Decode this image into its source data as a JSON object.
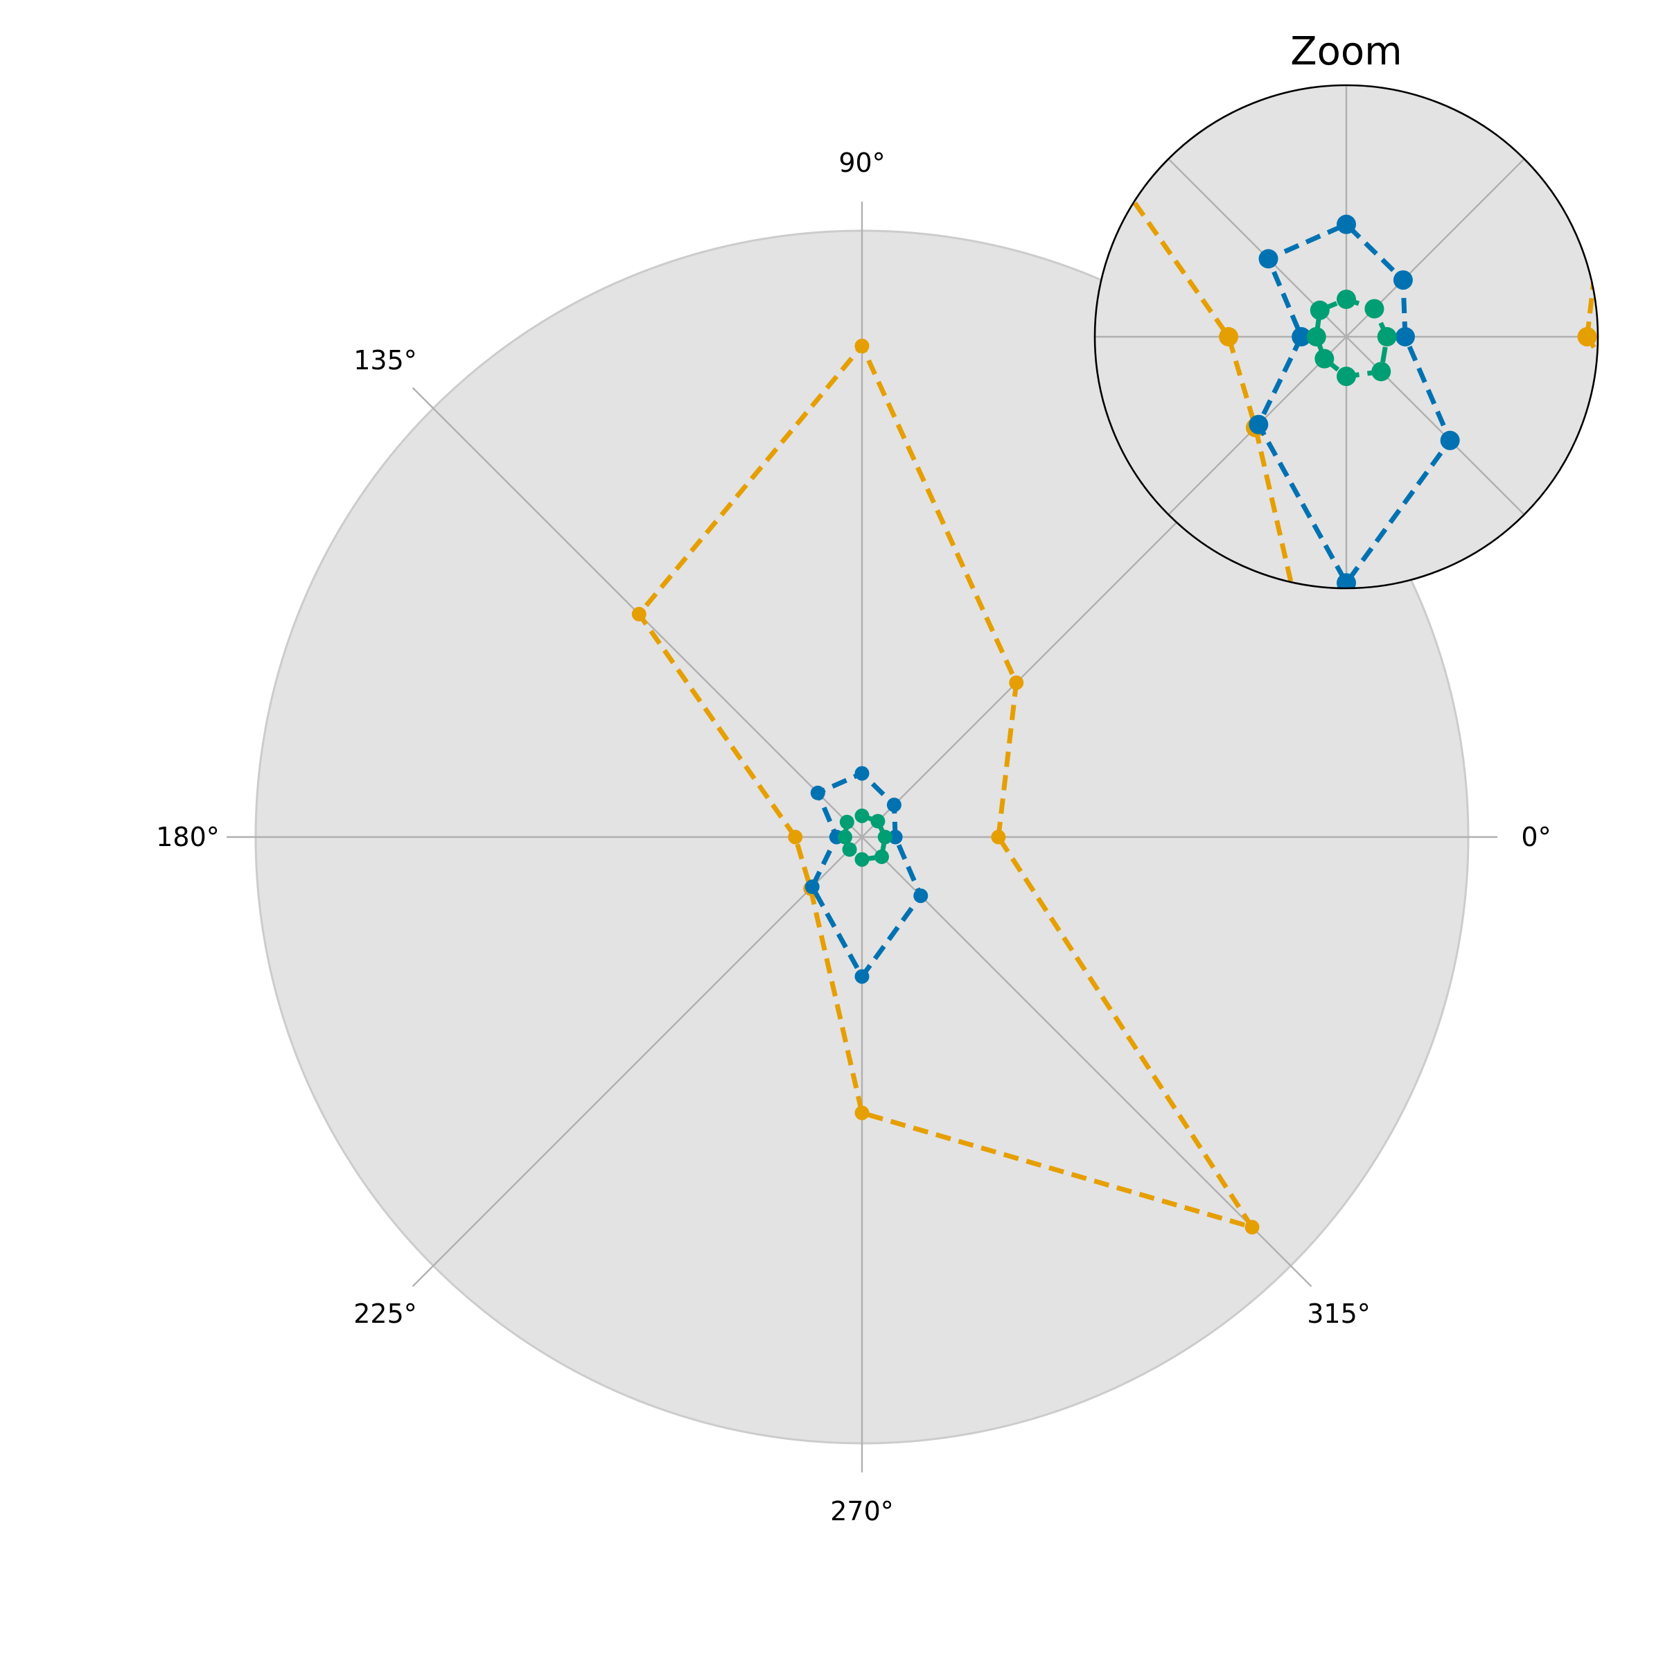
{
  "chart_data": [
    {
      "type": "line",
      "projection": "polar",
      "theta_unit": "degrees",
      "theta_ticks": [
        0,
        45,
        90,
        135,
        180,
        225,
        270,
        315
      ],
      "theta_tick_labels": [
        "0°",
        "",
        "90°",
        "135°",
        "180°",
        "225°",
        "270°",
        "315°"
      ],
      "rlim": [
        0,
        1.0
      ],
      "grid": true,
      "radial_tick_labels": false,
      "background": "#e3e3e3",
      "series": [
        {
          "color": "#e69f00",
          "theta": [
            0,
            45,
            90,
            135,
            180,
            225,
            270,
            315
          ],
          "r": [
            0.225,
            0.36,
            0.81,
            0.52,
            0.11,
            0.12,
            0.455,
            0.91
          ]
        },
        {
          "color": "#0072b2",
          "theta": [
            0,
            45,
            90,
            135,
            180,
            225,
            270,
            315
          ],
          "r": [
            0.055,
            0.075,
            0.105,
            0.103,
            0.042,
            0.116,
            0.23,
            0.137
          ]
        },
        {
          "color": "#009e73",
          "theta": [
            0,
            45,
            90,
            135,
            180,
            225,
            270,
            315
          ],
          "r": [
            0.038,
            0.037,
            0.035,
            0.035,
            0.028,
            0.029,
            0.037,
            0.046
          ]
        }
      ]
    },
    {
      "type": "line",
      "projection": "polar",
      "title": "Zoom",
      "inset": true,
      "rlim": [
        0,
        0.235
      ],
      "theta_ticks": [
        0,
        45,
        90,
        135,
        180,
        225,
        270,
        315
      ],
      "grid": true,
      "theta_tick_labels": false,
      "radial_tick_labels": false,
      "background": "#e3e3e3"
    }
  ]
}
